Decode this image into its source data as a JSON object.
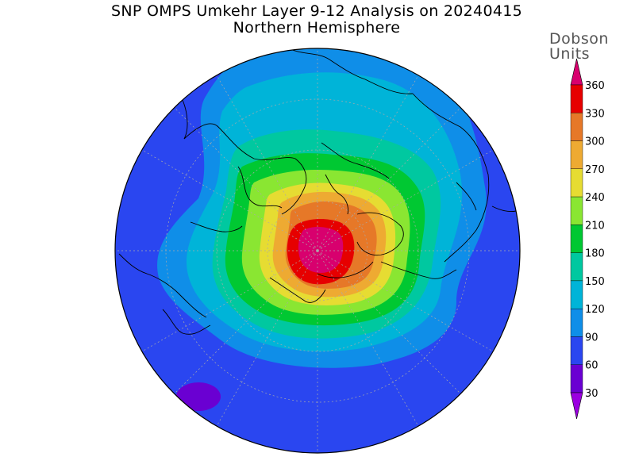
{
  "title": {
    "line1": "SNP OMPS Umkehr Layer 9-12 Analysis on 20240415",
    "line2": "Northern Hemisphere"
  },
  "colorbar": {
    "units_line1": "Dobson",
    "units_line2": "Units",
    "ticks": [
      "30",
      "60",
      "90",
      "120",
      "150",
      "180",
      "210",
      "240",
      "270",
      "300",
      "330",
      "360"
    ],
    "colors": [
      "#9b00e0",
      "#6a00d2",
      "#2a46f0",
      "#0f8ee8",
      "#00b4d8",
      "#00c8a0",
      "#00c832",
      "#8ae632",
      "#e6dc32",
      "#eeaa32",
      "#e67828",
      "#e60000",
      "#d8006e"
    ]
  }
}
